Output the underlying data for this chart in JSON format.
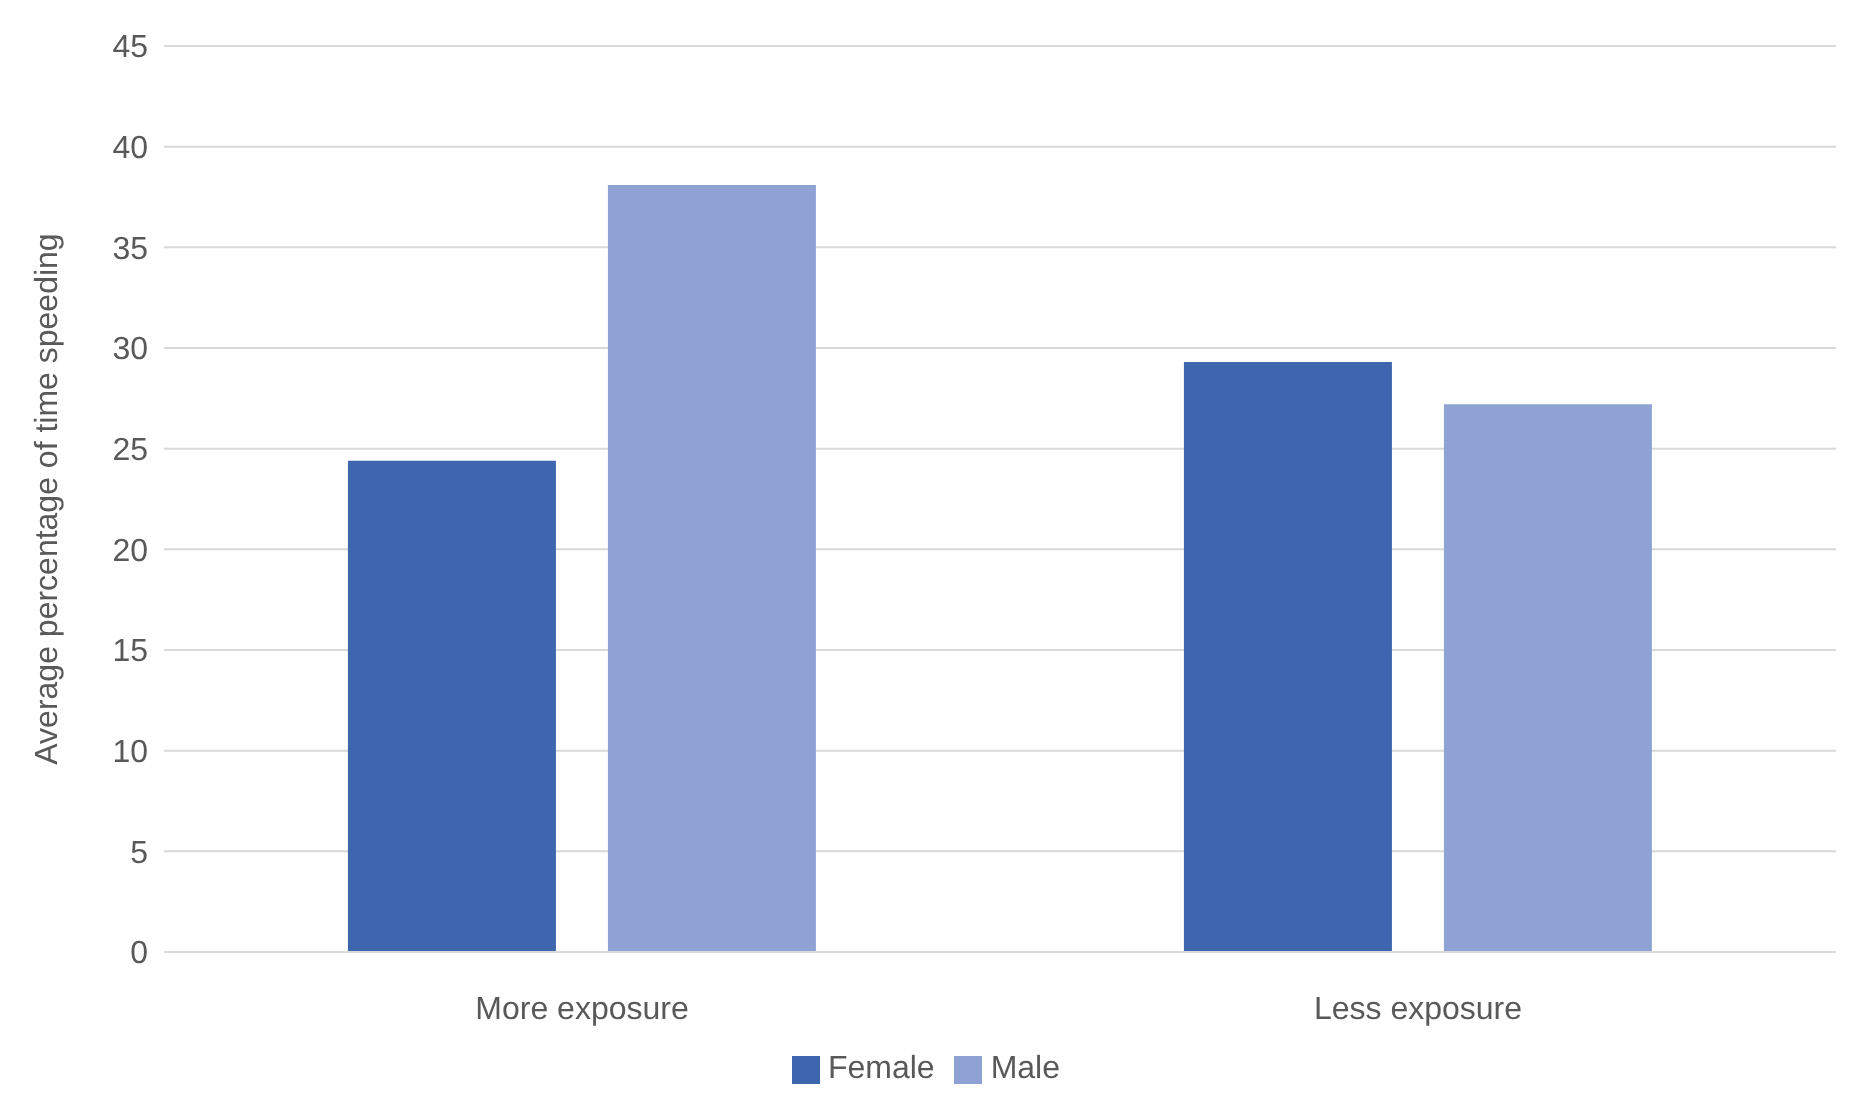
{
  "chart_data": {
    "type": "bar",
    "ylabel": "Average percentage of time speeding",
    "categories": [
      "More exposure",
      "Less exposure"
    ],
    "series": [
      {
        "name": "Female",
        "color": "#3e66ae",
        "values": [
          24.4,
          29.3
        ]
      },
      {
        "name": "Male",
        "color": "#8fa2d4",
        "values": [
          38.1,
          27.2
        ]
      }
    ],
    "ylim": [
      0,
      45
    ],
    "yticks": [
      0,
      5,
      10,
      15,
      20,
      25,
      30,
      35,
      40,
      45
    ],
    "grid": "y",
    "legend": "bottom"
  }
}
